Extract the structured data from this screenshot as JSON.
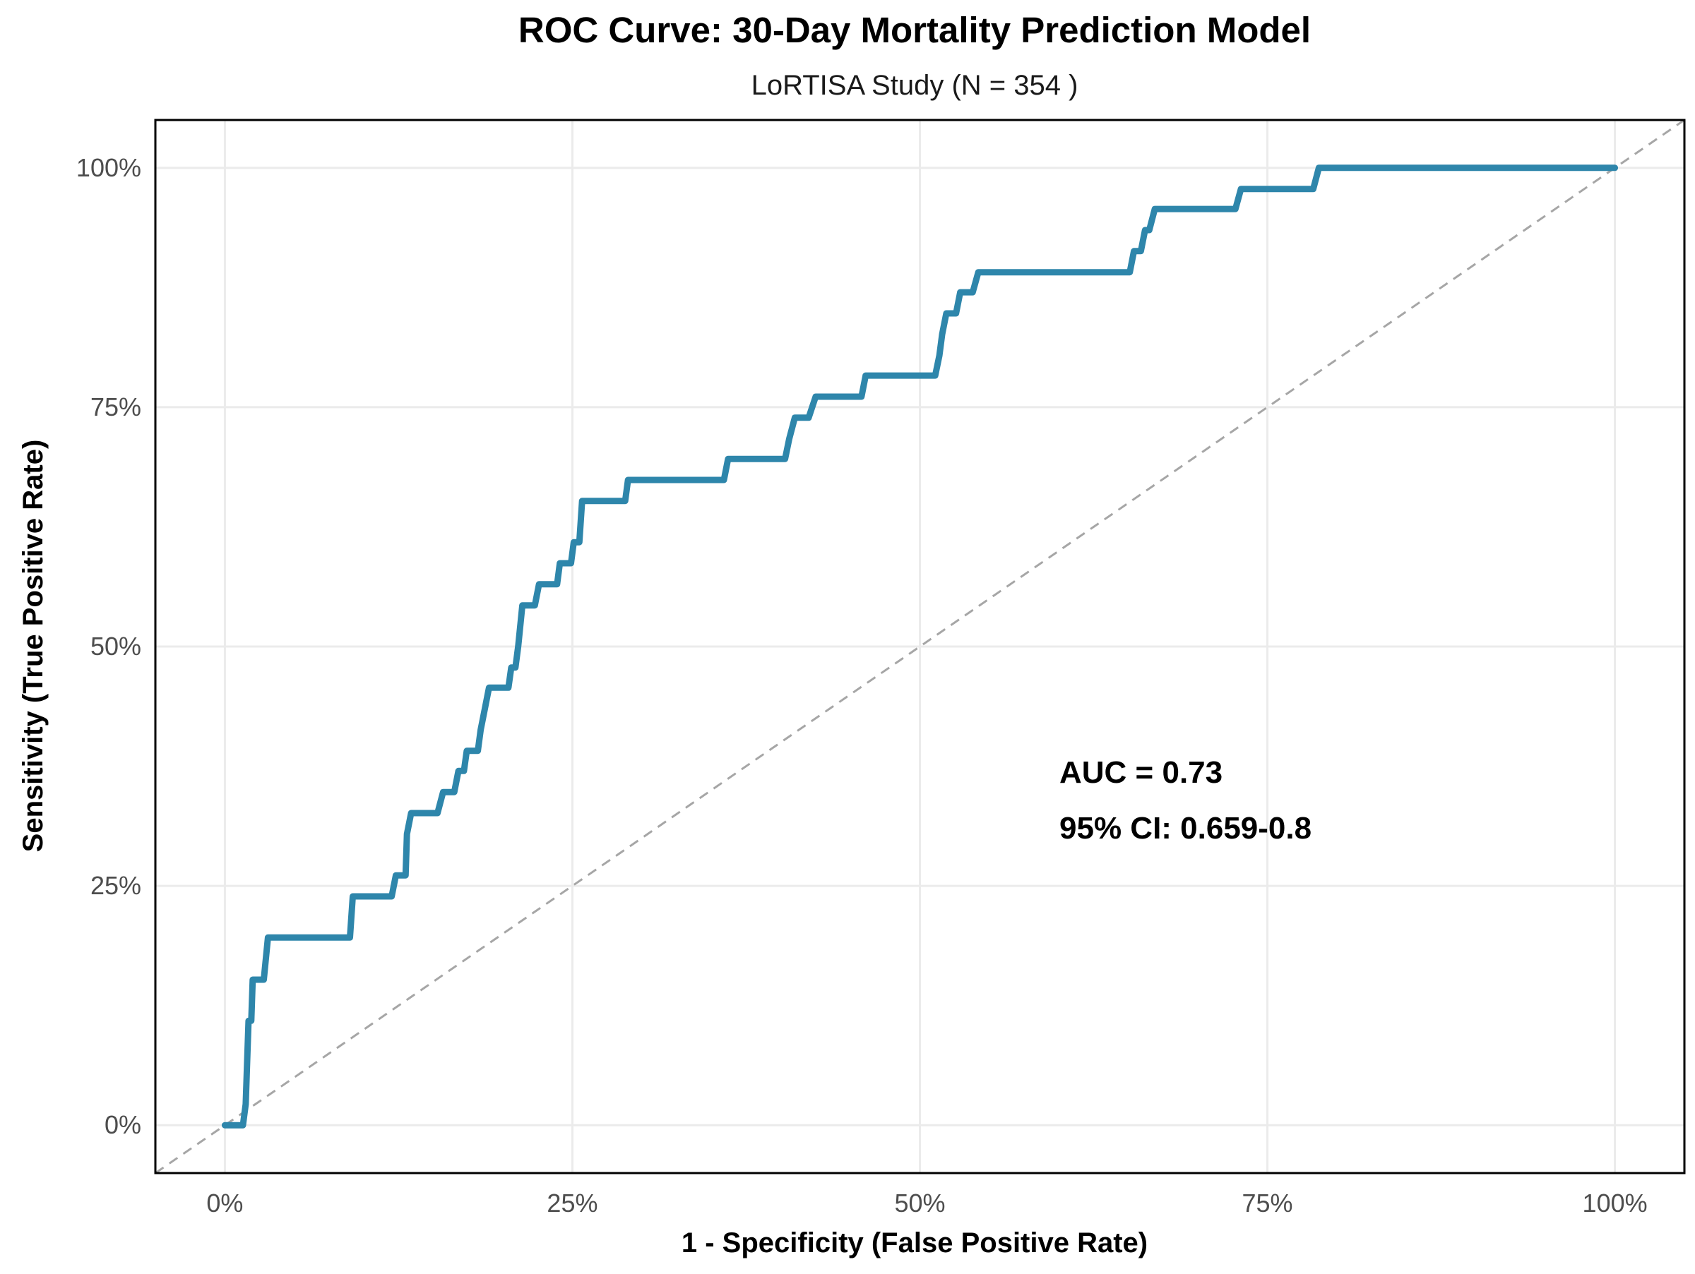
{
  "chart_data": {
    "type": "line",
    "title": "ROC Curve: 30-Day Mortality Prediction Model",
    "subtitle": "LoRTISA Study (N = 354 )",
    "xlabel": "1 - Specificity (False Positive Rate)",
    "ylabel": "Sensitivity (True Positive Rate)",
    "xlim": [
      -0.05,
      1.05
    ],
    "ylim": [
      -0.05,
      1.05
    ],
    "x_ticks": [
      0,
      0.25,
      0.5,
      0.75,
      1.0
    ],
    "x_tick_labels": [
      "0%",
      "25%",
      "50%",
      "75%",
      "100%"
    ],
    "y_ticks": [
      0,
      0.25,
      0.5,
      0.75,
      1.0
    ],
    "y_tick_labels": [
      "0%",
      "25%",
      "50%",
      "75%",
      "100%"
    ],
    "grid": true,
    "annotations": [
      "AUC = 0.73",
      "95% CI: 0.659-0.8"
    ],
    "colors": {
      "roc_curve": "#2E86AB",
      "reference_line": "#A6A6A6"
    },
    "series": [
      {
        "style": "solid",
        "points": [
          [
            0.0,
            0.0
          ],
          [
            0.013,
            0.0
          ],
          [
            0.015,
            0.022
          ],
          [
            0.017,
            0.109
          ],
          [
            0.019,
            0.109
          ],
          [
            0.02,
            0.152
          ],
          [
            0.028,
            0.152
          ],
          [
            0.031,
            0.196
          ],
          [
            0.09,
            0.196
          ],
          [
            0.092,
            0.239
          ],
          [
            0.12,
            0.239
          ],
          [
            0.123,
            0.261
          ],
          [
            0.13,
            0.261
          ],
          [
            0.131,
            0.304
          ],
          [
            0.134,
            0.326
          ],
          [
            0.153,
            0.326
          ],
          [
            0.157,
            0.348
          ],
          [
            0.165,
            0.348
          ],
          [
            0.168,
            0.37
          ],
          [
            0.172,
            0.37
          ],
          [
            0.174,
            0.391
          ],
          [
            0.182,
            0.391
          ],
          [
            0.184,
            0.413
          ],
          [
            0.187,
            0.435
          ],
          [
            0.19,
            0.457
          ],
          [
            0.204,
            0.457
          ],
          [
            0.206,
            0.478
          ],
          [
            0.209,
            0.478
          ],
          [
            0.211,
            0.5
          ],
          [
            0.214,
            0.543
          ],
          [
            0.223,
            0.543
          ],
          [
            0.226,
            0.565
          ],
          [
            0.239,
            0.565
          ],
          [
            0.241,
            0.587
          ],
          [
            0.249,
            0.587
          ],
          [
            0.251,
            0.609
          ],
          [
            0.255,
            0.609
          ],
          [
            0.257,
            0.652
          ],
          [
            0.288,
            0.652
          ],
          [
            0.29,
            0.674
          ],
          [
            0.359,
            0.674
          ],
          [
            0.362,
            0.696
          ],
          [
            0.403,
            0.696
          ],
          [
            0.406,
            0.717
          ],
          [
            0.41,
            0.739
          ],
          [
            0.42,
            0.739
          ],
          [
            0.425,
            0.761
          ],
          [
            0.458,
            0.761
          ],
          [
            0.461,
            0.783
          ],
          [
            0.511,
            0.783
          ],
          [
            0.514,
            0.804
          ],
          [
            0.516,
            0.826
          ],
          [
            0.519,
            0.848
          ],
          [
            0.526,
            0.848
          ],
          [
            0.529,
            0.87
          ],
          [
            0.538,
            0.87
          ],
          [
            0.542,
            0.891
          ],
          [
            0.651,
            0.891
          ],
          [
            0.654,
            0.913
          ],
          [
            0.659,
            0.913
          ],
          [
            0.662,
            0.935
          ],
          [
            0.665,
            0.935
          ],
          [
            0.669,
            0.957
          ],
          [
            0.727,
            0.957
          ],
          [
            0.731,
            0.978
          ],
          [
            0.783,
            0.978
          ],
          [
            0.787,
            1.0
          ],
          [
            1.0,
            1.0
          ]
        ]
      },
      {
        "style": "dashed",
        "points": [
          [
            -0.05,
            -0.05
          ],
          [
            1.05,
            1.05
          ]
        ]
      }
    ]
  }
}
